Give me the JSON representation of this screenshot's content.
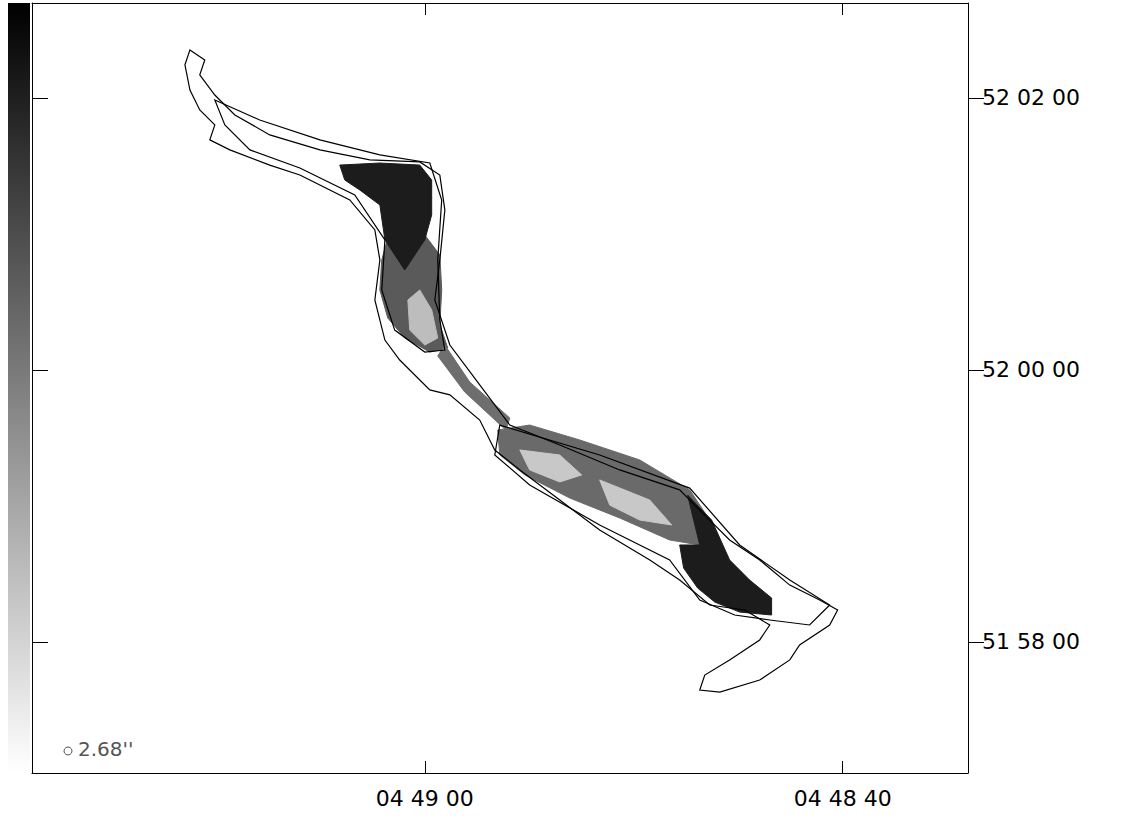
{
  "chart_data": {
    "type": "image",
    "xlim": [
      17358.8,
      17314.0
    ],
    "ylim": [
      187022.2,
      187361.9
    ],
    "xticks": [
      {
        "value": 17340,
        "label": "04 49 00"
      },
      {
        "value": 17320,
        "label": "04 48 40"
      }
    ],
    "yticks": [
      {
        "value": 187080,
        "label": "51 58 00"
      },
      {
        "value": 187200,
        "label": "52 00 00"
      },
      {
        "value": 187320,
        "label": "52 02 00"
      }
    ],
    "grid": false,
    "beam_label": "2.68''",
    "regions": [
      {
        "color": "#5a5a5a",
        "x": [
          17341.67,
          17340.0,
          17339.28,
          17339.19,
          17339.28,
          17338.9,
          17339.76,
          17340.96,
          17341.77,
          17342.15,
          17342.06
        ],
        "y": [
          187261.8,
          187259.6,
          187250.7,
          187235.3,
          187219.9,
          187209.7,
          187207.9,
          187214.1,
          187222.9,
          187235.3,
          187248.5
        ]
      },
      {
        "color": "#1c1c1c",
        "x": [
          17344.07,
          17342.15,
          17340.24,
          17339.67,
          17339.67,
          17340.0,
          17340.96,
          17341.91,
          17342.15,
          17343.11,
          17343.83
        ],
        "y": [
          187290.4,
          187291.3,
          187290.4,
          187283.8,
          187268.4,
          187257.4,
          187244.1,
          187257.4,
          187272.8,
          187279.4,
          187283.8
        ]
      },
      {
        "color": "#bdbdbd",
        "x": [
          17340.81,
          17340.24,
          17339.67,
          17339.38,
          17340.0,
          17340.72
        ],
        "y": [
          187230.9,
          187235.3,
          187226.5,
          187214.1,
          187211.0,
          187217.6
        ]
      },
      {
        "color": "#6e6e6e",
        "x": [
          17339.04,
          17337.85,
          17335.93,
          17336.12,
          17338.09,
          17339.38
        ],
        "y": [
          187211.0,
          187194.7,
          187178.8,
          187173.5,
          187190.3,
          187206.2
        ]
      },
      {
        "color": "#6a6a6a",
        "x": [
          17336.51,
          17334.98,
          17332.58,
          17329.71,
          17327.32,
          17326.36,
          17326.84,
          17328.28,
          17330.67,
          17333.06,
          17335.21,
          17336.41
        ],
        "y": [
          187173.5,
          187175.7,
          187169.1,
          187160.3,
          187147.1,
          187133.8,
          187122.8,
          187125.0,
          187134.7,
          187143.5,
          187153.7,
          187162.5
        ]
      },
      {
        "color": "#c8c8c8",
        "x": [
          17335.45,
          17333.54,
          17332.49,
          17333.54,
          17334.98
        ],
        "y": [
          187164.7,
          187162.5,
          187153.7,
          187150.6,
          187155.9
        ]
      },
      {
        "color": "#c8c8c8",
        "x": [
          17331.63,
          17329.23,
          17328.18,
          17329.71,
          17331.15
        ],
        "y": [
          187151.5,
          187142.6,
          187131.6,
          187133.8,
          187140.4
        ]
      },
      {
        "color": "#1c1c1c",
        "x": [
          17327.42,
          17326.27,
          17325.41,
          17324.45,
          17323.4,
          17323.4,
          17324.93,
          17326.12,
          17326.94,
          17327.61,
          17327.8,
          17326.84
        ],
        "y": [
          187144.8,
          187133.8,
          187116.2,
          187107.3,
          187099.4,
          187091.9,
          187093.2,
          187097.6,
          187103.8,
          187112.6,
          187122.8,
          187122.8
        ]
      }
    ],
    "contours": [
      {
        "x": [
          17351.24,
          17350.53,
          17350.77,
          17350.05,
          17349.09,
          17347.42,
          17345.02,
          17342.63,
          17340.24,
          17339.28,
          17339.04,
          17339.28,
          17339.52,
          17338.8,
          17337.37,
          17335.93,
          17333.54,
          17330.67,
          17327.8,
          17326.84,
          17325.41,
          17323.97,
          17322.53,
          17321.1,
          17320.24,
          17320.62,
          17322.06,
          17322.53,
          17323.97,
          17325.88,
          17326.84,
          17326.6,
          17325.41,
          17323.97,
          17323.49,
          17324.69,
          17326.36,
          17327.8,
          17329.23,
          17331.63,
          17333.54,
          17335.45,
          17336.65,
          17337.37,
          17338.8,
          17339.76,
          17341.2,
          17341.91,
          17342.39,
          17342.15,
          17342.39,
          17343.59,
          17345.98,
          17347.42,
          17349.33,
          17350.29,
          17350.05,
          17350.77,
          17351.24,
          17351.48
        ],
        "y": [
          187341.2,
          187336.8,
          187330.2,
          187321.3,
          187312.5,
          187303.7,
          187297.1,
          187292.7,
          187291.8,
          187286.0,
          187270.6,
          187248.5,
          187230.9,
          187211.0,
          187193.4,
          187175.7,
          187166.9,
          187155.9,
          187147.1,
          187138.2,
          187125.0,
          187116.2,
          187105.1,
          187098.5,
          187094.1,
          187087.5,
          187078.7,
          187072.1,
          187063.2,
          187057.9,
          187058.8,
          187065.4,
          187072.1,
          187080.9,
          187087.5,
          187094.1,
          187096.3,
          187107.3,
          187116.2,
          187129.4,
          187142.6,
          187155.9,
          187164.7,
          187177.9,
          187189.0,
          187191.2,
          187204.4,
          187213.2,
          187230.9,
          187248.5,
          187261.8,
          187275.0,
          187286.0,
          187290.4,
          187297.1,
          187301.5,
          187308.1,
          187314.7,
          187323.5,
          187334.6
        ]
      },
      {
        "x": [
          17350.05,
          17347.9,
          17345.02,
          17342.15,
          17339.76,
          17339.19,
          17339.38,
          17339.28,
          17339.04,
          17340.0,
          17341.44,
          17342.06,
          17341.91,
          17343.35,
          17345.98,
          17348.37,
          17349.57
        ],
        "y": [
          187319.1,
          187310.3,
          187301.5,
          187294.9,
          187291.3,
          187275.0,
          187248.5,
          187222.1,
          187208.8,
          187207.9,
          187217.6,
          187235.3,
          187257.4,
          187277.2,
          187289.1,
          187297.1,
          187308.1
        ]
      },
      {
        "x": [
          17336.41,
          17331.63,
          17327.32,
          17324.93,
          17322.53,
          17320.62,
          17321.58,
          17323.49,
          17325.17,
          17326.84,
          17328.28,
          17331.63,
          17334.98,
          17336.65
        ],
        "y": [
          187175.7,
          187162.5,
          187147.9,
          187122.8,
          187107.3,
          187096.3,
          187087.5,
          187089.7,
          187091.9,
          187098.5,
          187116.2,
          187131.6,
          187149.3,
          187162.5
        ]
      }
    ]
  }
}
